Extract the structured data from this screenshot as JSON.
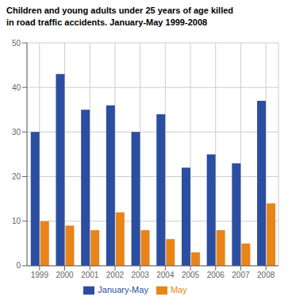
{
  "chart_data": {
    "type": "bar",
    "title": "Children and young adults under 25 years of age killed\nin road traffic accidents. January-May 1999-2008",
    "categories": [
      "1999",
      "2000",
      "2001",
      "2002",
      "2003",
      "2004",
      "2005",
      "2006",
      "2007",
      "2008"
    ],
    "series": [
      {
        "name": "January-May",
        "color": "#2B4EA0",
        "values": [
          30,
          43,
          35,
          36,
          30,
          34,
          22,
          25,
          23,
          37
        ]
      },
      {
        "name": "May",
        "color": "#E8841A",
        "values": [
          10,
          9,
          8,
          12,
          8,
          6,
          3,
          8,
          5,
          14
        ]
      }
    ],
    "ylim": [
      0,
      50
    ],
    "yticks": [
      0,
      10,
      20,
      30,
      40,
      50
    ],
    "grid": true,
    "legend": "bottom"
  }
}
